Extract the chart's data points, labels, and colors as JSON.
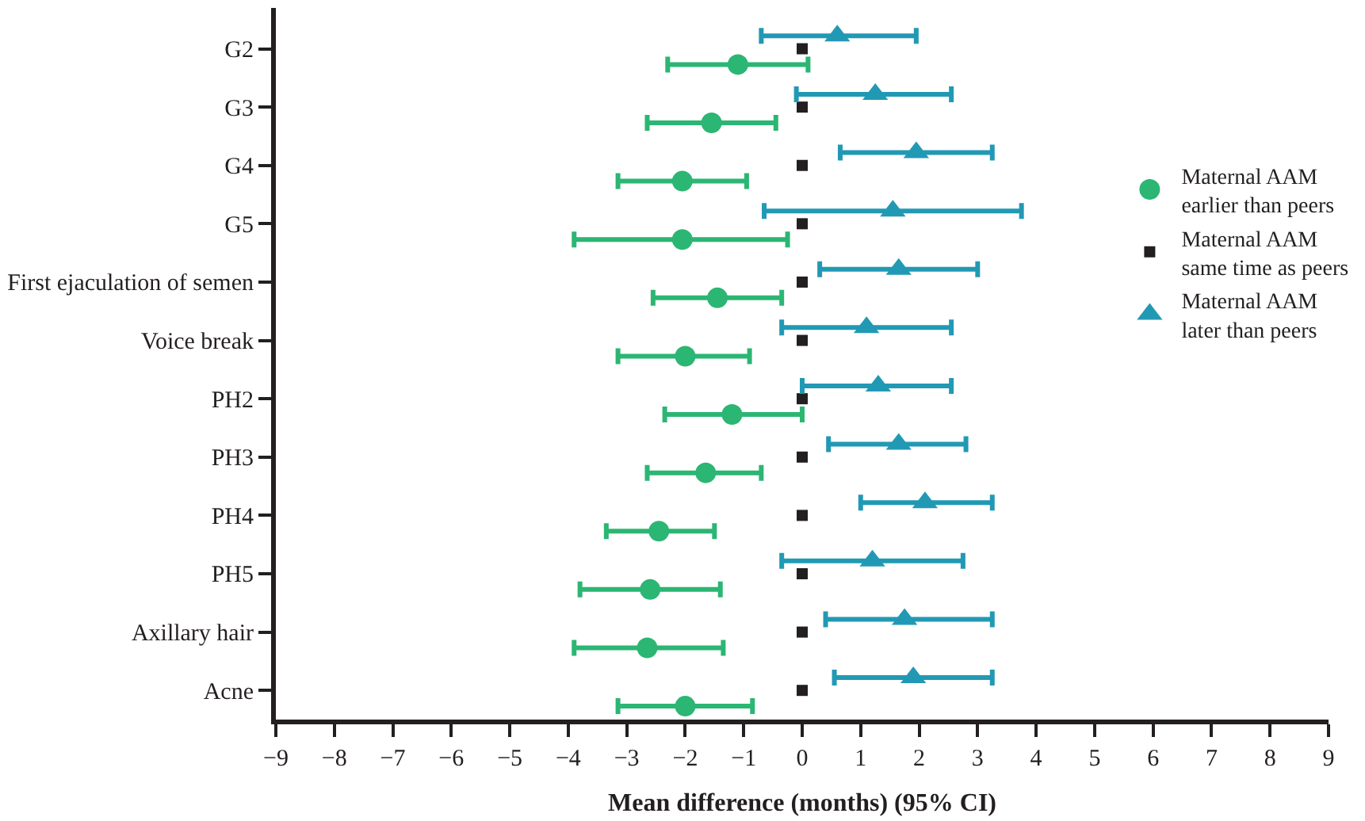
{
  "chart_data": {
    "type": "scatter",
    "orientation": "horizontal",
    "categories": [
      "G2",
      "G3",
      "G4",
      "G5",
      "First ejaculation of semen",
      "Voice break",
      "PH2",
      "PH3",
      "PH4",
      "PH5",
      "Axillary hair",
      "Acne"
    ],
    "xlabel": "Mean difference (months) (95% CI)",
    "xlim": [
      -9,
      9
    ],
    "xticks": [
      {
        "value": -9,
        "label": "−9"
      },
      {
        "value": -8,
        "label": "−8"
      },
      {
        "value": -7,
        "label": "−7"
      },
      {
        "value": -6,
        "label": "−6"
      },
      {
        "value": -5,
        "label": "−5"
      },
      {
        "value": -4,
        "label": "−4"
      },
      {
        "value": -3,
        "label": "−3"
      },
      {
        "value": -2,
        "label": "−2"
      },
      {
        "value": -1,
        "label": "−1"
      },
      0,
      1,
      2,
      3,
      4,
      5,
      6,
      7,
      8,
      9
    ],
    "legend": "right",
    "series": [
      {
        "name": "Maternal AAM earlier than peers",
        "color": "#2bb673",
        "marker": "circle",
        "values": [
          -1.1,
          -1.55,
          -2.05,
          -2.05,
          -1.45,
          -2.0,
          -1.2,
          -1.65,
          -2.45,
          -2.6,
          -2.65,
          -2.0
        ],
        "errors": [
          [
            -2.3,
            0.1
          ],
          [
            -2.65,
            -0.45
          ],
          [
            -3.15,
            -0.95
          ],
          [
            -3.9,
            -0.25
          ],
          [
            -2.55,
            -0.35
          ],
          [
            -3.15,
            -0.9
          ],
          [
            -2.35,
            0.0
          ],
          [
            -2.65,
            -0.7
          ],
          [
            -3.35,
            -1.5
          ],
          [
            -3.8,
            -1.4
          ],
          [
            -3.9,
            -1.35
          ],
          [
            -3.15,
            -0.85
          ]
        ]
      },
      {
        "name": "Maternal AAM same time as peers",
        "color": "#231f20",
        "marker": "square",
        "values": [
          0,
          0,
          0,
          0,
          0,
          0,
          0,
          0,
          0,
          0,
          0,
          0
        ]
      },
      {
        "name": "Maternal AAM later than peers",
        "color": "#2299b4",
        "marker": "triangle",
        "values": [
          0.6,
          1.25,
          1.95,
          1.55,
          1.65,
          1.1,
          1.3,
          1.65,
          2.1,
          1.2,
          1.75,
          1.9
        ],
        "errors": [
          [
            -0.7,
            1.95
          ],
          [
            -0.1,
            2.55
          ],
          [
            0.65,
            3.25
          ],
          [
            -0.65,
            3.75
          ],
          [
            0.3,
            3.0
          ],
          [
            -0.35,
            2.55
          ],
          [
            0.0,
            2.55
          ],
          [
            0.45,
            2.8
          ],
          [
            1.0,
            3.25
          ],
          [
            -0.35,
            2.75
          ],
          [
            0.4,
            3.25
          ],
          [
            0.55,
            3.25
          ]
        ]
      }
    ]
  }
}
